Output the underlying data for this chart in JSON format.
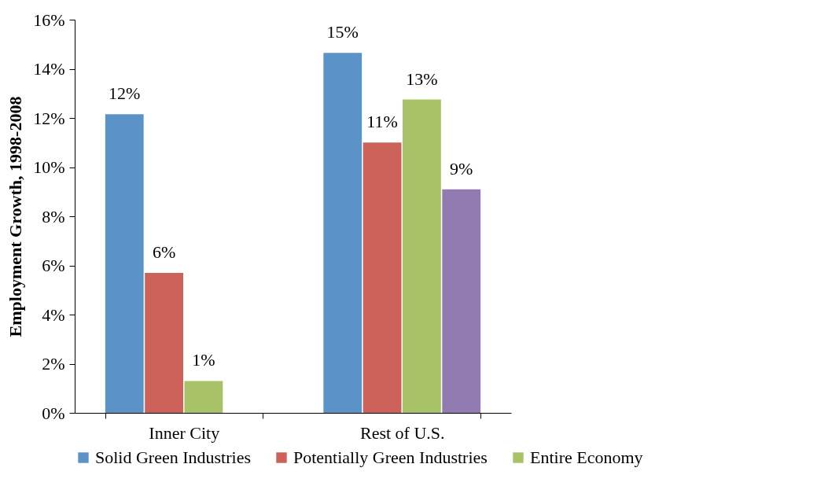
{
  "chart_data": {
    "type": "bar",
    "ylabel": "Employment Growth, 1998-2008",
    "categories": [
      "Inner City",
      "Rest of U.S."
    ],
    "series": [
      {
        "name": "Solid Green Industries",
        "color": "#5b93c8",
        "values": [
          12.15,
          14.65
        ],
        "value_labels": [
          "12%",
          "15%"
        ]
      },
      {
        "name": "Potentially Green Industries",
        "color": "#cd625a",
        "values": [
          5.7,
          11.0
        ],
        "value_labels": [
          "6%",
          "11%"
        ]
      },
      {
        "name": "Entire Economy",
        "color": "#a7c267",
        "values": [
          1.3,
          12.75
        ],
        "value_labels": [
          "1%",
          "13%"
        ]
      },
      {
        "color": "#917bb1",
        "values": [
          null,
          9.1
        ],
        "value_labels": [
          null,
          "9%"
        ]
      }
    ],
    "ylim": [
      0,
      16
    ],
    "yticks": [
      {
        "value": 0,
        "label": "0%"
      },
      {
        "value": 2,
        "label": "2%"
      },
      {
        "value": 4,
        "label": "4%"
      },
      {
        "value": 6,
        "label": "6%"
      },
      {
        "value": 8,
        "label": "8%"
      },
      {
        "value": 10,
        "label": "10%"
      },
      {
        "value": 12,
        "label": "12%"
      },
      {
        "value": 14,
        "label": "14%"
      },
      {
        "value": 16,
        "label": "16%"
      }
    ],
    "grid": false,
    "legend": "bottom"
  }
}
